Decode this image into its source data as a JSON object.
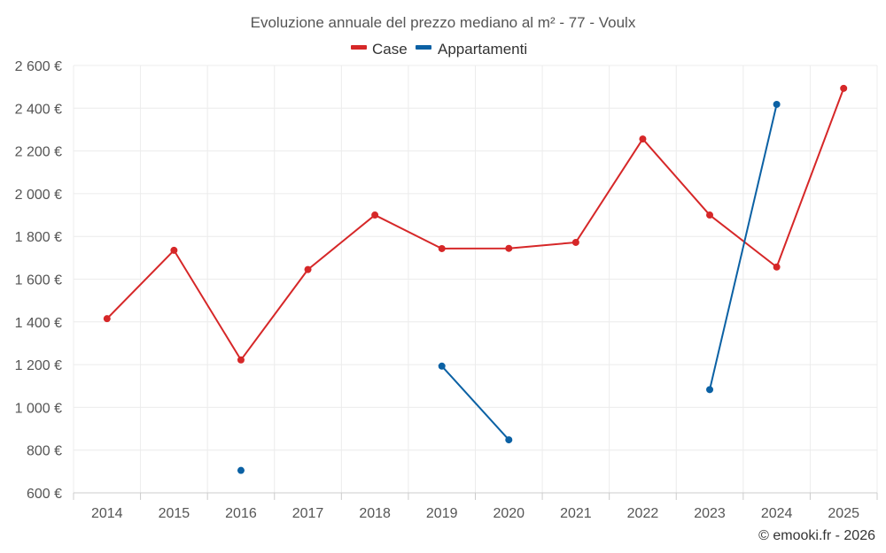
{
  "chart_data": {
    "type": "line",
    "title": "Evoluzione annuale del prezzo mediano al m² - 77 - Voulx",
    "categories": [
      "2014",
      "2015",
      "2016",
      "2017",
      "2018",
      "2019",
      "2020",
      "2021",
      "2022",
      "2023",
      "2024",
      "2025"
    ],
    "series": [
      {
        "name": "Case",
        "color": "#d62728",
        "values": [
          1415,
          1735,
          1222,
          1645,
          1900,
          1743,
          1744,
          1772,
          2256,
          1900,
          1657,
          2493
        ]
      },
      {
        "name": "Appartamenti",
        "color": "#0b61a4",
        "values": [
          null,
          null,
          705,
          null,
          null,
          1193,
          848,
          null,
          null,
          1083,
          2418,
          null
        ]
      }
    ],
    "y_ticks": [
      "2 600 €",
      "2 400 €",
      "2 200 €",
      "2 000 €",
      "1 800 €",
      "1 600 €",
      "1 400 €",
      "1 200 €",
      "1 000 €",
      "800 €",
      "600 €"
    ],
    "y_tick_values": [
      2600,
      2400,
      2200,
      2000,
      1800,
      1600,
      1400,
      1200,
      1000,
      800,
      600
    ],
    "ylim": [
      600,
      2600
    ],
    "xlabel": "",
    "ylabel": "",
    "grid": true,
    "legend_position": "top-center",
    "credit": "© emooki.fr - 2026"
  }
}
